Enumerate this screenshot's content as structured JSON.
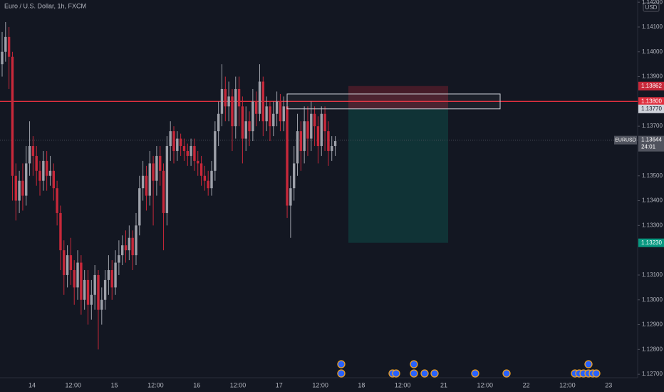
{
  "chart_data": {
    "type": "candlestick",
    "title": "Euro / U.S. Dollar, 1h, FXCM",
    "currency": "USD",
    "up_color": "#9ea1aa",
    "down_color": "#c8283a",
    "ylim": [
      1.12686,
      1.14209
    ],
    "yticks": [
      {
        "value": 1.142,
        "label": "1.14200"
      },
      {
        "value": 1.141,
        "label": "1.14100"
      },
      {
        "value": 1.14,
        "label": "1.14000"
      },
      {
        "value": 1.139,
        "label": "1.13900"
      },
      {
        "value": 1.137,
        "label": "1.13700"
      },
      {
        "value": 1.135,
        "label": "1.13500"
      },
      {
        "value": 1.134,
        "label": "1.13400"
      },
      {
        "value": 1.133,
        "label": "1.13300"
      },
      {
        "value": 1.131,
        "label": "1.13100"
      },
      {
        "value": 1.13,
        "label": "1.13000"
      },
      {
        "value": 1.129,
        "label": "1.12900"
      },
      {
        "value": 1.128,
        "label": "1.12800"
      },
      {
        "value": 1.127,
        "label": "1.12700"
      }
    ],
    "xtick_labels": [
      "14",
      "12:00",
      "15",
      "12:00",
      "16",
      "12:00",
      "17",
      "12:00",
      "18",
      "12:00",
      "21",
      "12:00",
      "22",
      "12:00",
      "23"
    ],
    "price_tags": [
      {
        "value": 1.13862,
        "label": "1.13862",
        "color": "#c8283a"
      },
      {
        "value": 1.138,
        "label": "1.13800",
        "color": "#e0303f"
      },
      {
        "value": 1.1377,
        "label": "1.13770",
        "color": "#d1d4dc"
      },
      {
        "value": 1.1323,
        "label": "1.13230",
        "color": "#089981"
      }
    ],
    "current": {
      "symbol": "EURUSD",
      "value": 1.13644,
      "label": "1.13644",
      "countdown": "24:01"
    },
    "zone": {
      "top": 1.1383,
      "bottom": 1.1377
    },
    "ohlc": [
      [
        1.1395,
        1.1408,
        1.139,
        1.14
      ],
      [
        1.14,
        1.1412,
        1.1396,
        1.1406
      ],
      [
        1.1406,
        1.141,
        1.1385,
        1.1398
      ],
      [
        1.1398,
        1.14,
        1.134,
        1.135
      ],
      [
        1.135,
        1.1355,
        1.1332,
        1.134
      ],
      [
        1.134,
        1.1352,
        1.1335,
        1.1348
      ],
      [
        1.1348,
        1.1355,
        1.1336,
        1.1342
      ],
      [
        1.1342,
        1.1362,
        1.1338,
        1.1355
      ],
      [
        1.1355,
        1.1372,
        1.135,
        1.1362
      ],
      [
        1.1362,
        1.1366,
        1.135,
        1.1358
      ],
      [
        1.1358,
        1.1362,
        1.1346,
        1.1352
      ],
      [
        1.1352,
        1.1356,
        1.1342,
        1.1348
      ],
      [
        1.1348,
        1.136,
        1.1344,
        1.1356
      ],
      [
        1.1356,
        1.136,
        1.1344,
        1.135
      ],
      [
        1.135,
        1.1358,
        1.1346,
        1.1352
      ],
      [
        1.1352,
        1.1355,
        1.134,
        1.1345
      ],
      [
        1.1345,
        1.1348,
        1.133,
        1.1335
      ],
      [
        1.1335,
        1.1338,
        1.1312,
        1.132
      ],
      [
        1.132,
        1.1324,
        1.1302,
        1.131
      ],
      [
        1.131,
        1.1322,
        1.1305,
        1.1318
      ],
      [
        1.1318,
        1.1325,
        1.1306,
        1.1312
      ],
      [
        1.1312,
        1.1316,
        1.1298,
        1.1305
      ],
      [
        1.1305,
        1.132,
        1.13,
        1.1315
      ],
      [
        1.1315,
        1.1318,
        1.1294,
        1.13
      ],
      [
        1.13,
        1.1312,
        1.1296,
        1.1308
      ],
      [
        1.1308,
        1.1312,
        1.129,
        1.1298
      ],
      [
        1.1298,
        1.1308,
        1.1292,
        1.1302
      ],
      [
        1.1302,
        1.1314,
        1.1296,
        1.131
      ],
      [
        1.131,
        1.1312,
        1.128,
        1.1296
      ],
      [
        1.1296,
        1.1305,
        1.129,
        1.13
      ],
      [
        1.13,
        1.1312,
        1.1296,
        1.1308
      ],
      [
        1.1308,
        1.1318,
        1.1302,
        1.1312
      ],
      [
        1.1312,
        1.1316,
        1.13,
        1.1305
      ],
      [
        1.1305,
        1.132,
        1.1302,
        1.1315
      ],
      [
        1.1315,
        1.1324,
        1.131,
        1.1318
      ],
      [
        1.1318,
        1.1326,
        1.1314,
        1.1322
      ],
      [
        1.1322,
        1.1328,
        1.1315,
        1.132
      ],
      [
        1.132,
        1.133,
        1.1316,
        1.1325
      ],
      [
        1.1325,
        1.1328,
        1.1312,
        1.1318
      ],
      [
        1.1318,
        1.1335,
        1.1314,
        1.133
      ],
      [
        1.133,
        1.135,
        1.1326,
        1.1345
      ],
      [
        1.1345,
        1.1356,
        1.134,
        1.135
      ],
      [
        1.135,
        1.1354,
        1.1336,
        1.1342
      ],
      [
        1.1342,
        1.136,
        1.1338,
        1.1355
      ],
      [
        1.1355,
        1.1358,
        1.133,
        1.1348
      ],
      [
        1.1348,
        1.1362,
        1.1342,
        1.1358
      ],
      [
        1.1358,
        1.1362,
        1.1346,
        1.1352
      ],
      [
        1.1352,
        1.1355,
        1.132,
        1.1335
      ],
      [
        1.1335,
        1.1366,
        1.133,
        1.1362
      ],
      [
        1.1362,
        1.1372,
        1.1356,
        1.1368
      ],
      [
        1.1368,
        1.137,
        1.1355,
        1.136
      ],
      [
        1.136,
        1.1368,
        1.1356,
        1.1365
      ],
      [
        1.1365,
        1.1367,
        1.1358,
        1.1362
      ],
      [
        1.1362,
        1.1365,
        1.1356,
        1.136
      ],
      [
        1.136,
        1.1363,
        1.1354,
        1.1358
      ],
      [
        1.1358,
        1.1365,
        1.1354,
        1.1362
      ],
      [
        1.1362,
        1.1365,
        1.1352,
        1.1356
      ],
      [
        1.1356,
        1.136,
        1.135,
        1.1355
      ],
      [
        1.1355,
        1.1358,
        1.1346,
        1.135
      ],
      [
        1.135,
        1.1354,
        1.1344,
        1.1348
      ],
      [
        1.1348,
        1.1352,
        1.1342,
        1.1345
      ],
      [
        1.1345,
        1.1356,
        1.1342,
        1.1352
      ],
      [
        1.1352,
        1.1372,
        1.1348,
        1.1368
      ],
      [
        1.1368,
        1.138,
        1.1362,
        1.1375
      ],
      [
        1.1375,
        1.1395,
        1.137,
        1.1385
      ],
      [
        1.1385,
        1.139,
        1.1372,
        1.1378
      ],
      [
        1.1378,
        1.1388,
        1.1372,
        1.1382
      ],
      [
        1.1382,
        1.1385,
        1.136,
        1.137
      ],
      [
        1.137,
        1.139,
        1.1365,
        1.1385
      ],
      [
        1.1385,
        1.139,
        1.137,
        1.1378
      ],
      [
        1.1378,
        1.1382,
        1.1355,
        1.1365
      ],
      [
        1.1365,
        1.1378,
        1.136,
        1.1372
      ],
      [
        1.1372,
        1.1376,
        1.1362,
        1.1368
      ],
      [
        1.1368,
        1.1385,
        1.1364,
        1.138
      ],
      [
        1.138,
        1.1384,
        1.137,
        1.1375
      ],
      [
        1.1375,
        1.1395,
        1.1372,
        1.1388
      ],
      [
        1.1388,
        1.139,
        1.1366,
        1.1372
      ],
      [
        1.1372,
        1.1382,
        1.1368,
        1.1378
      ],
      [
        1.1378,
        1.138,
        1.1364,
        1.137
      ],
      [
        1.137,
        1.138,
        1.1366,
        1.1375
      ],
      [
        1.1375,
        1.1384,
        1.137,
        1.138
      ],
      [
        1.138,
        1.1383,
        1.1368,
        1.1372
      ],
      [
        1.1372,
        1.1382,
        1.1368,
        1.1378
      ],
      [
        1.1378,
        1.138,
        1.1333,
        1.1338
      ],
      [
        1.1338,
        1.135,
        1.1325,
        1.1345
      ],
      [
        1.1345,
        1.1362,
        1.134,
        1.1355
      ],
      [
        1.1355,
        1.1375,
        1.135,
        1.1368
      ],
      [
        1.1368,
        1.1372,
        1.1352,
        1.136
      ],
      [
        1.136,
        1.1378,
        1.1355,
        1.1372
      ],
      [
        1.1372,
        1.1378,
        1.1358,
        1.1365
      ],
      [
        1.1365,
        1.138,
        1.136,
        1.1375
      ],
      [
        1.1375,
        1.1378,
        1.1362,
        1.137
      ],
      [
        1.137,
        1.1374,
        1.1355,
        1.1362
      ],
      [
        1.1362,
        1.1378,
        1.1358,
        1.1375
      ],
      [
        1.1375,
        1.1378,
        1.136,
        1.1368
      ],
      [
        1.1368,
        1.1372,
        1.1354,
        1.136
      ],
      [
        1.136,
        1.1366,
        1.1356,
        1.1362
      ],
      [
        1.1362,
        1.1366,
        1.1358,
        1.1364
      ]
    ]
  }
}
